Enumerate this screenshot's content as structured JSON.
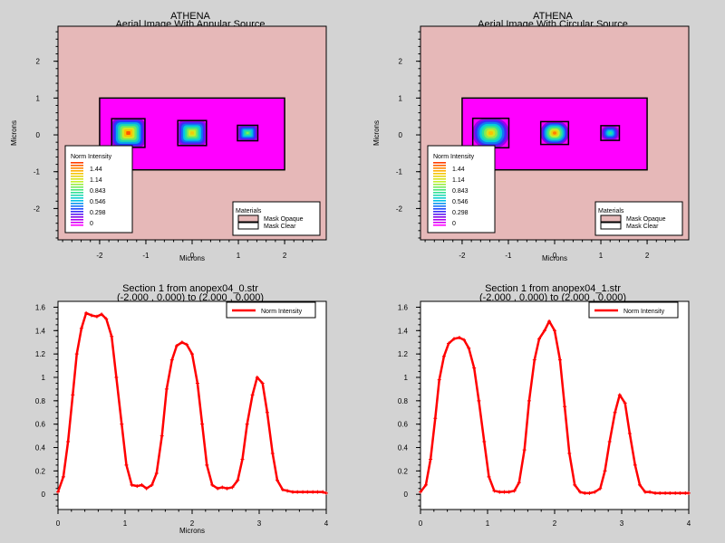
{
  "chart_data": [
    {
      "type": "heatmap",
      "title": "ATHENA",
      "subtitle": "Aerial Image With Annular Source",
      "xlabel": "Microns",
      "ylabel": "Microns",
      "xlim": [
        -2.9,
        2.9
      ],
      "ylim": [
        -2.85,
        2.95
      ],
      "xticks": [
        -2,
        -1,
        0,
        1,
        2
      ],
      "yticks": [
        -2,
        -1,
        0,
        1,
        2
      ],
      "mask_rect": {
        "x0": -2,
        "x1": 2,
        "y0": -0.95,
        "y1": 1.0
      },
      "spots": [
        {
          "cx": -1.38,
          "cy": 0.05,
          "w": 0.72,
          "h": 0.78,
          "peak": 1.55,
          "shape": "flat"
        },
        {
          "cx": 0.0,
          "cy": 0.05,
          "w": 0.62,
          "h": 0.68,
          "peak": 1.3,
          "shape": "flat"
        },
        {
          "cx": 1.2,
          "cy": 0.05,
          "w": 0.44,
          "h": 0.42,
          "peak": 1.0,
          "shape": "flat"
        }
      ],
      "legend": {
        "title": "Norm Intensity",
        "labels": [
          "1.44",
          "1.14",
          "0.843",
          "0.546",
          "0.298",
          "0"
        ]
      },
      "materials": {
        "title": "Materials",
        "items": [
          {
            "label": "Mask Opaque",
            "color": "#e6b8b8"
          },
          {
            "label": "Mask Clear",
            "color": "#ffffff"
          }
        ]
      },
      "colors": {
        "background": "#e6b8b8",
        "mask": "#ff00ff"
      }
    },
    {
      "type": "heatmap",
      "title": "ATHENA",
      "subtitle": "Aerial Image With Circular Source",
      "xlabel": "Microns",
      "ylabel": "Microns",
      "xlim": [
        -2.9,
        2.9
      ],
      "ylim": [
        -2.85,
        2.95
      ],
      "xticks": [
        -2,
        -1,
        0,
        1,
        2
      ],
      "yticks": [
        -2,
        -1,
        0,
        1,
        2
      ],
      "mask_rect": {
        "x0": -2,
        "x1": 2,
        "y0": -0.95,
        "y1": 1.0
      },
      "spots": [
        {
          "cx": -1.38,
          "cy": 0.05,
          "w": 0.78,
          "h": 0.8,
          "peak": 1.34,
          "shape": "round"
        },
        {
          "cx": 0.0,
          "cy": 0.05,
          "w": 0.6,
          "h": 0.62,
          "peak": 1.48,
          "shape": "round"
        },
        {
          "cx": 1.2,
          "cy": 0.05,
          "w": 0.4,
          "h": 0.4,
          "peak": 0.85,
          "shape": "round"
        }
      ],
      "legend": {
        "title": "Norm Intensity",
        "labels": [
          "1.44",
          "1.14",
          "0.843",
          "0.546",
          "0.298",
          "0"
        ]
      },
      "materials": {
        "title": "Materials",
        "items": [
          {
            "label": "Mask Opaque",
            "color": "#e6b8b8"
          },
          {
            "label": "Mask Clear",
            "color": "#ffffff"
          }
        ]
      },
      "colors": {
        "background": "#e6b8b8",
        "mask": "#ff00ff"
      }
    },
    {
      "type": "line",
      "title": "Section 1 from anopex04_0.str",
      "subtitle": "(-2.000 , 0.000) to (2.000 , 0.000)",
      "xlabel": "Microns",
      "ylabel": "",
      "xlim": [
        0,
        4
      ],
      "ylim": [
        -0.13,
        1.65
      ],
      "xticks": [
        0,
        1,
        2,
        3,
        4
      ],
      "yticks": [
        0,
        0.2,
        0.4,
        0.6,
        0.8,
        1,
        1.2,
        1.4,
        1.6
      ],
      "yticklabels": [
        "0",
        "0.2",
        "0.4",
        "0.6",
        "0.8",
        "1",
        "1.2",
        "1.4",
        "1.6"
      ],
      "legend_position": "top-right",
      "series": [
        {
          "name": "Norm Intensity",
          "color": "#ff0000",
          "x": [
            0,
            0.08,
            0.15,
            0.22,
            0.28,
            0.35,
            0.42,
            0.5,
            0.58,
            0.65,
            0.72,
            0.8,
            0.87,
            0.95,
            1.02,
            1.1,
            1.18,
            1.25,
            1.32,
            1.4,
            1.47,
            1.55,
            1.62,
            1.7,
            1.77,
            1.85,
            1.92,
            2.0,
            2.08,
            2.15,
            2.22,
            2.3,
            2.38,
            2.45,
            2.52,
            2.6,
            2.68,
            2.75,
            2.82,
            2.9,
            2.97,
            3.05,
            3.12,
            3.2,
            3.27,
            3.35,
            3.42,
            3.5,
            3.57,
            3.65,
            3.72,
            3.8,
            3.87,
            3.95,
            4.0
          ],
          "y": [
            0.02,
            0.15,
            0.45,
            0.85,
            1.2,
            1.42,
            1.55,
            1.53,
            1.52,
            1.54,
            1.5,
            1.35,
            1.0,
            0.6,
            0.25,
            0.08,
            0.07,
            0.08,
            0.05,
            0.08,
            0.18,
            0.5,
            0.9,
            1.15,
            1.27,
            1.3,
            1.28,
            1.2,
            0.95,
            0.6,
            0.25,
            0.08,
            0.05,
            0.06,
            0.05,
            0.06,
            0.12,
            0.3,
            0.6,
            0.85,
            1.0,
            0.95,
            0.7,
            0.35,
            0.12,
            0.04,
            0.03,
            0.02,
            0.02,
            0.02,
            0.02,
            0.02,
            0.02,
            0.02,
            0.01
          ]
        }
      ]
    },
    {
      "type": "line",
      "title": "Section 1 from anopex04_1.str",
      "subtitle": "(-2.000 , 0.000) to (2.000 , 0.000)",
      "xlabel": "",
      "ylabel": "",
      "xlim": [
        0,
        4
      ],
      "ylim": [
        -0.13,
        1.65
      ],
      "xticks": [
        0,
        1,
        2,
        3,
        4
      ],
      "yticks": [
        0,
        0.2,
        0.4,
        0.6,
        0.8,
        1,
        1.2,
        1.4,
        1.6
      ],
      "yticklabels": [
        "0",
        "0.2",
        "0.4",
        "0.6",
        "0.8",
        "1",
        "1.2",
        "1.4",
        "1.6"
      ],
      "legend_position": "top-right",
      "series": [
        {
          "name": "Norm Intensity",
          "color": "#ff0000",
          "x": [
            0,
            0.08,
            0.15,
            0.22,
            0.28,
            0.35,
            0.42,
            0.5,
            0.58,
            0.65,
            0.72,
            0.8,
            0.87,
            0.95,
            1.02,
            1.1,
            1.18,
            1.25,
            1.32,
            1.4,
            1.47,
            1.55,
            1.62,
            1.7,
            1.77,
            1.85,
            1.92,
            2.0,
            2.08,
            2.15,
            2.22,
            2.3,
            2.38,
            2.45,
            2.52,
            2.6,
            2.68,
            2.75,
            2.82,
            2.9,
            2.97,
            3.05,
            3.12,
            3.2,
            3.27,
            3.35,
            3.42,
            3.5,
            3.57,
            3.65,
            3.72,
            3.8,
            3.87,
            3.95,
            4.0
          ],
          "y": [
            0.02,
            0.08,
            0.3,
            0.65,
            0.98,
            1.18,
            1.29,
            1.33,
            1.34,
            1.32,
            1.25,
            1.08,
            0.8,
            0.45,
            0.15,
            0.03,
            0.02,
            0.02,
            0.02,
            0.03,
            0.1,
            0.38,
            0.8,
            1.15,
            1.33,
            1.4,
            1.48,
            1.4,
            1.15,
            0.75,
            0.35,
            0.08,
            0.02,
            0.01,
            0.01,
            0.02,
            0.05,
            0.2,
            0.45,
            0.7,
            0.85,
            0.78,
            0.52,
            0.25,
            0.08,
            0.02,
            0.02,
            0.01,
            0.01,
            0.01,
            0.01,
            0.01,
            0.01,
            0.01,
            0.01
          ]
        }
      ]
    }
  ]
}
